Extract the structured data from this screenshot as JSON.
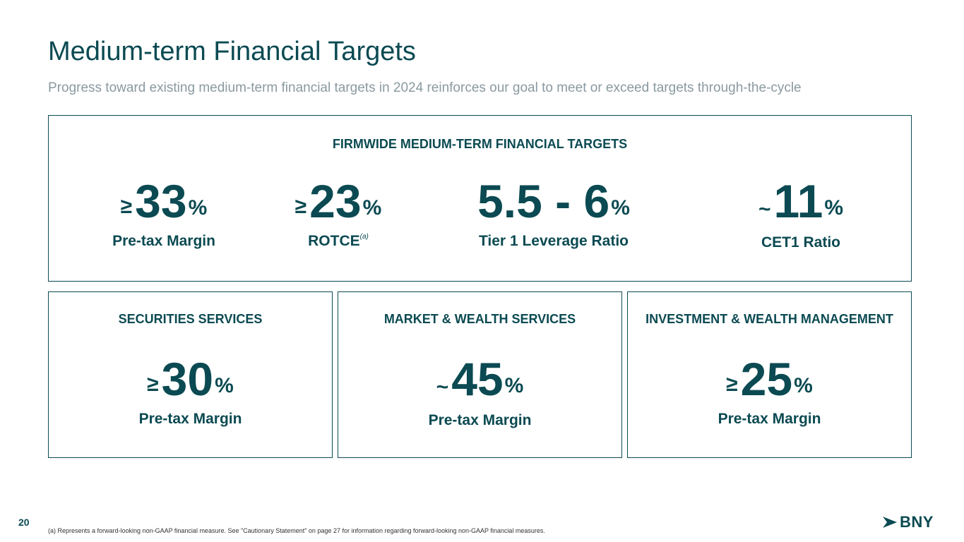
{
  "header": {
    "title": "Medium-term Financial Targets",
    "subtitle": "Progress toward existing medium-term financial targets in 2024 reinforces our goal to meet or exceed targets through-the-cycle"
  },
  "firmwide": {
    "heading": "FIRMWIDE MEDIUM-TERM FINANCIAL TARGETS",
    "metrics": [
      {
        "prefix": "≥",
        "value": "33",
        "suffix": "%",
        "label": "Pre-tax Margin"
      },
      {
        "prefix": "≥",
        "value": "23",
        "suffix": "%",
        "label": "ROTCE",
        "note": "(a)"
      },
      {
        "prefix": "",
        "value": "5.5 - 6",
        "suffix": "%",
        "label": "Tier 1 Leverage Ratio"
      },
      {
        "prefix": "~",
        "value": "11",
        "suffix": "%",
        "label": "CET1 Ratio"
      }
    ]
  },
  "segments": [
    {
      "heading": "SECURITIES SERVICES",
      "prefix": "≥",
      "value": "30",
      "suffix": "%",
      "label": "Pre-tax Margin"
    },
    {
      "heading": "MARKET & WEALTH SERVICES",
      "prefix": "~",
      "value": "45",
      "suffix": "%",
      "label": "Pre-tax Margin"
    },
    {
      "heading": "INVESTMENT & WEALTH MANAGEMENT",
      "prefix": "≥",
      "value": "25",
      "suffix": "%",
      "label": "Pre-tax Margin"
    }
  ],
  "footer": {
    "page_number": "20",
    "footnote": "(a) Represents a forward-looking non-GAAP financial measure. See \"Cautionary Statement\" on page 27 for information regarding forward-looking non-GAAP financial measures.",
    "logo_text": "BNY",
    "logo_icon": "arrow-icon"
  },
  "colors": {
    "brand": "#0b4a52",
    "subtitle": "#8a9aa0"
  }
}
